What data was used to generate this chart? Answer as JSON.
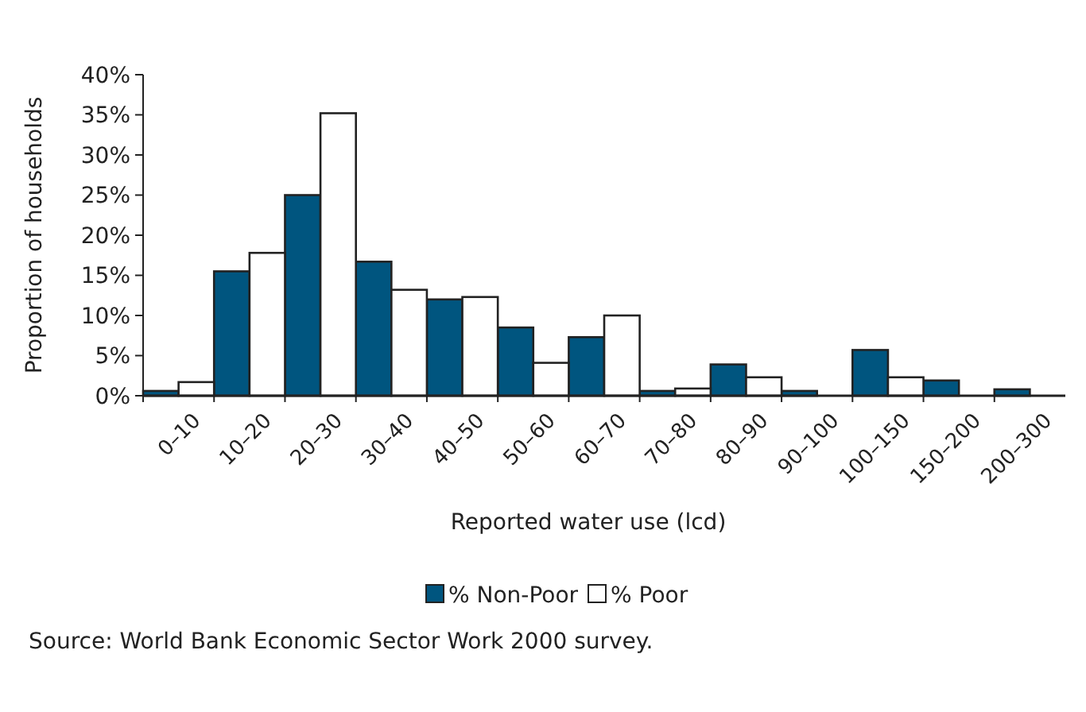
{
  "chart_data": {
    "type": "bar",
    "xlabel": "Reported water use (lcd)",
    "ylabel": "Proportion of households",
    "categories": [
      "0–10",
      "10–20",
      "20–30",
      "30–40",
      "40–50",
      "50–60",
      "60–70",
      "70–80",
      "80–90",
      "90–100",
      "100–150",
      "150–200",
      "200–300"
    ],
    "series": [
      {
        "name": "% Non-Poor",
        "color": "#00557f",
        "values": [
          0.6,
          15.5,
          25,
          16.7,
          12,
          8.5,
          7.3,
          0.6,
          3.9,
          0.6,
          5.7,
          1.9,
          0.8
        ]
      },
      {
        "name": "% Poor",
        "color": "#ffffff",
        "values": [
          1.7,
          17.8,
          35.2,
          13.2,
          12.3,
          4.1,
          10,
          0.9,
          2.3,
          null,
          2.3,
          null,
          null
        ]
      }
    ],
    "ylim": [
      0,
      40
    ],
    "yticks": [
      {
        "value": 0,
        "label": "0%"
      },
      {
        "value": 5,
        "label": "5%"
      },
      {
        "value": 10,
        "label": "10%"
      },
      {
        "value": 15,
        "label": "15%"
      },
      {
        "value": 20,
        "label": "20%"
      },
      {
        "value": 25,
        "label": "25%"
      },
      {
        "value": 30,
        "label": "30%"
      },
      {
        "value": 35,
        "label": "35%"
      },
      {
        "value": 40,
        "label": "40%"
      }
    ],
    "legend": "bottom",
    "annotations": [
      "Source: World Bank Economic Sector Work 2000 survey."
    ]
  }
}
